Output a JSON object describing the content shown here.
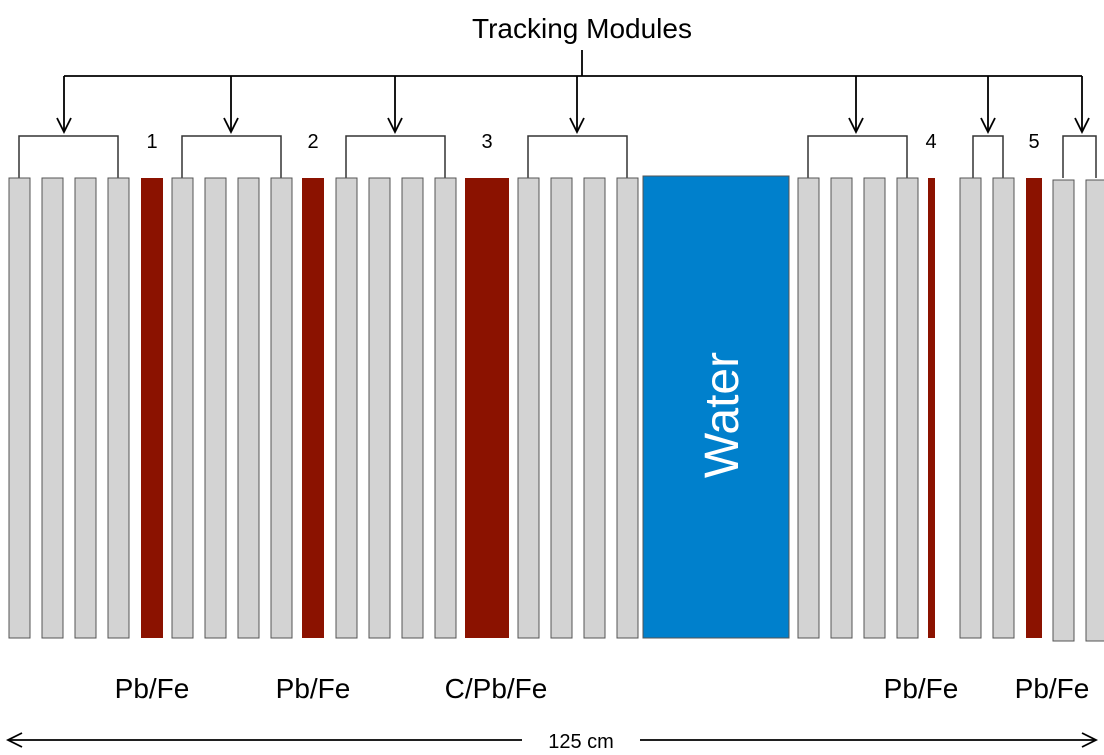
{
  "title": "Tracking Modules",
  "target_numbers": [
    "1",
    "2",
    "3",
    "4",
    "5"
  ],
  "material_labels": [
    "Pb/Fe",
    "Pb/Fe",
    "C/Pb/Fe",
    "Pb/Fe",
    "Pb/Fe"
  ],
  "water_label": "Water",
  "length_label": "125 cm",
  "colors": {
    "module_fill": "#d3d3d3",
    "target_fill": "#8b1200",
    "water_fill": "#0080cc"
  }
}
